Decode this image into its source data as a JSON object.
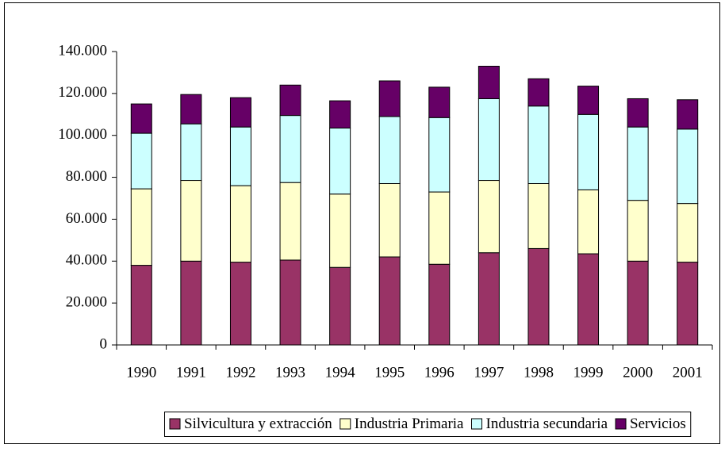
{
  "chart_data": {
    "type": "stacked-bar",
    "categories": [
      "1990",
      "1991",
      "1992",
      "1993",
      "1994",
      "1995",
      "1996",
      "1997",
      "1998",
      "1999",
      "2000",
      "2001"
    ],
    "series": [
      {
        "name": "Silvicultura y extracción",
        "color": "#993366",
        "values": [
          38000,
          40000,
          39500,
          40500,
          37000,
          42000,
          38500,
          44000,
          46000,
          43500,
          40000,
          39500
        ]
      },
      {
        "name": "Industria Primaria",
        "color": "#ffffcc",
        "values": [
          36500,
          38500,
          36500,
          37000,
          35000,
          35000,
          34500,
          34500,
          31000,
          30500,
          29000,
          28000
        ]
      },
      {
        "name": "Industria secundaria",
        "color": "#ccffff",
        "values": [
          26500,
          27000,
          28000,
          32000,
          31500,
          32000,
          35500,
          39000,
          37000,
          36000,
          35000,
          35500
        ]
      },
      {
        "name": "Servicios",
        "color": "#660066",
        "values": [
          14000,
          14000,
          14000,
          14500,
          13000,
          17000,
          14500,
          15500,
          13000,
          13500,
          13500,
          14000
        ]
      }
    ],
    "ylim": [
      0,
      140000
    ],
    "yticks": [
      0,
      {
        "value": 20000,
        "label": "20.000"
      },
      {
        "value": 40000,
        "label": "40.000"
      },
      {
        "value": 60000,
        "label": "60.000"
      },
      {
        "value": 80000,
        "label": "80.000"
      },
      {
        "value": 100000,
        "label": "100.000"
      },
      {
        "value": 120000,
        "label": "120.000"
      },
      {
        "value": 140000,
        "label": "140.000"
      }
    ],
    "legend": "bottom"
  }
}
